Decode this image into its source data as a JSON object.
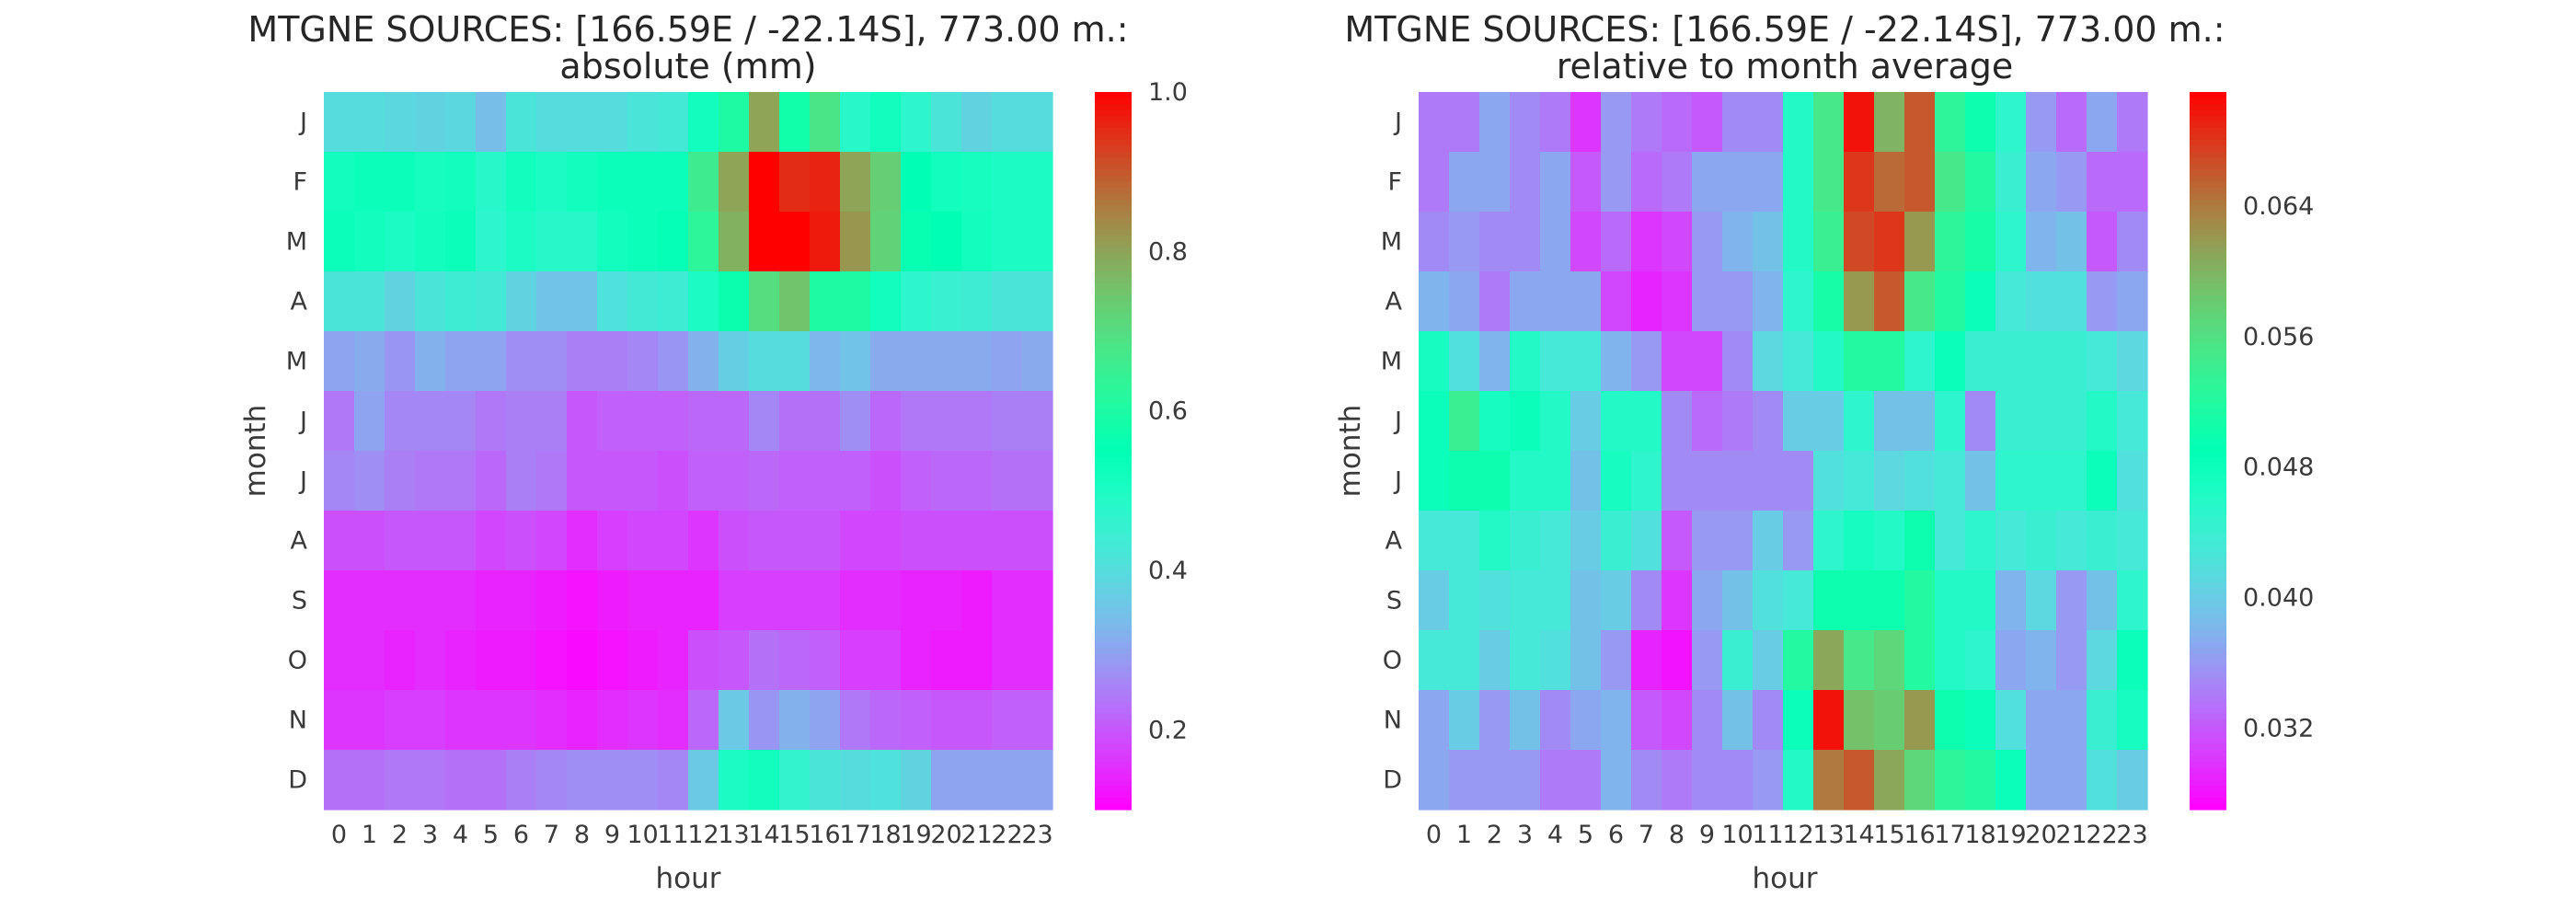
{
  "chart_data": [
    {
      "type": "heatmap",
      "title_line1": "MTGNE SOURCES: [166.59E / -22.14S], 773.00 m.:",
      "title_line2": "absolute (mm)",
      "xlabel": "hour",
      "ylabel": "month",
      "x": [
        "0",
        "1",
        "2",
        "3",
        "4",
        "5",
        "6",
        "7",
        "8",
        "9",
        "10",
        "11",
        "12",
        "13",
        "14",
        "15",
        "16",
        "17",
        "18",
        "19",
        "20",
        "21",
        "22",
        "23"
      ],
      "y": [
        "J",
        "F",
        "M",
        "A",
        "M",
        "J",
        "J",
        "A",
        "S",
        "O",
        "N",
        "D"
      ],
      "colormap": "rainbow",
      "vmin": 0.1,
      "vmax": 1.0,
      "colorbar_ticks": [
        "0.2",
        "0.4",
        "0.6",
        "0.8",
        "1.0"
      ],
      "colorbar_tick_values": [
        0.2,
        0.4,
        0.6,
        0.8,
        1.0
      ],
      "values": [
        [
          0.4,
          0.4,
          0.39,
          0.38,
          0.39,
          0.34,
          0.42,
          0.4,
          0.4,
          0.4,
          0.42,
          0.43,
          0.52,
          0.6,
          0.8,
          0.58,
          0.68,
          0.48,
          0.52,
          0.47,
          0.42,
          0.38,
          0.4,
          0.4
        ],
        [
          0.52,
          0.53,
          0.53,
          0.51,
          0.52,
          0.48,
          0.52,
          0.5,
          0.52,
          0.53,
          0.53,
          0.53,
          0.66,
          0.8,
          1.0,
          0.95,
          0.96,
          0.8,
          0.73,
          0.55,
          0.52,
          0.51,
          0.5,
          0.5
        ],
        [
          0.53,
          0.52,
          0.5,
          0.52,
          0.53,
          0.47,
          0.5,
          0.48,
          0.48,
          0.52,
          0.53,
          0.54,
          0.63,
          0.78,
          1.0,
          1.0,
          0.97,
          0.82,
          0.72,
          0.56,
          0.55,
          0.52,
          0.5,
          0.5
        ],
        [
          0.42,
          0.42,
          0.38,
          0.42,
          0.44,
          0.43,
          0.38,
          0.35,
          0.35,
          0.41,
          0.43,
          0.44,
          0.5,
          0.57,
          0.7,
          0.75,
          0.6,
          0.6,
          0.52,
          0.47,
          0.45,
          0.44,
          0.42,
          0.42
        ],
        [
          0.3,
          0.31,
          0.28,
          0.32,
          0.3,
          0.3,
          0.27,
          0.27,
          0.25,
          0.25,
          0.26,
          0.28,
          0.32,
          0.37,
          0.4,
          0.4,
          0.33,
          0.35,
          0.31,
          0.31,
          0.31,
          0.31,
          0.3,
          0.31
        ],
        [
          0.24,
          0.3,
          0.26,
          0.26,
          0.26,
          0.24,
          0.25,
          0.25,
          0.2,
          0.21,
          0.21,
          0.21,
          0.22,
          0.22,
          0.26,
          0.23,
          0.23,
          0.27,
          0.22,
          0.24,
          0.24,
          0.24,
          0.25,
          0.25
        ],
        [
          0.26,
          0.27,
          0.25,
          0.24,
          0.24,
          0.22,
          0.25,
          0.24,
          0.2,
          0.2,
          0.2,
          0.19,
          0.21,
          0.21,
          0.22,
          0.21,
          0.21,
          0.21,
          0.19,
          0.21,
          0.22,
          0.22,
          0.23,
          0.23
        ],
        [
          0.19,
          0.19,
          0.2,
          0.2,
          0.2,
          0.18,
          0.19,
          0.18,
          0.15,
          0.17,
          0.18,
          0.18,
          0.16,
          0.19,
          0.2,
          0.2,
          0.2,
          0.18,
          0.18,
          0.19,
          0.19,
          0.19,
          0.19,
          0.19
        ],
        [
          0.15,
          0.15,
          0.15,
          0.15,
          0.15,
          0.14,
          0.14,
          0.13,
          0.12,
          0.13,
          0.14,
          0.14,
          0.14,
          0.17,
          0.17,
          0.17,
          0.17,
          0.15,
          0.15,
          0.14,
          0.14,
          0.13,
          0.15,
          0.15
        ],
        [
          0.15,
          0.15,
          0.14,
          0.15,
          0.14,
          0.13,
          0.13,
          0.12,
          0.11,
          0.12,
          0.13,
          0.14,
          0.19,
          0.2,
          0.23,
          0.22,
          0.21,
          0.17,
          0.17,
          0.14,
          0.13,
          0.13,
          0.15,
          0.15
        ],
        [
          0.16,
          0.16,
          0.17,
          0.17,
          0.16,
          0.16,
          0.16,
          0.15,
          0.14,
          0.15,
          0.16,
          0.15,
          0.22,
          0.36,
          0.28,
          0.32,
          0.3,
          0.24,
          0.22,
          0.21,
          0.2,
          0.2,
          0.21,
          0.21
        ],
        [
          0.23,
          0.23,
          0.24,
          0.24,
          0.23,
          0.23,
          0.25,
          0.26,
          0.27,
          0.27,
          0.27,
          0.26,
          0.36,
          0.5,
          0.52,
          0.46,
          0.42,
          0.4,
          0.41,
          0.38,
          0.3,
          0.3,
          0.3,
          0.3
        ]
      ]
    },
    {
      "type": "heatmap",
      "title_line1": "MTGNE SOURCES: [166.59E / -22.14S], 773.00 m.:",
      "title_line2": "relative to month average",
      "xlabel": "hour",
      "ylabel": "month",
      "x": [
        "0",
        "1",
        "2",
        "3",
        "4",
        "5",
        "6",
        "7",
        "8",
        "9",
        "10",
        "11",
        "12",
        "13",
        "14",
        "15",
        "16",
        "17",
        "18",
        "19",
        "20",
        "21",
        "22",
        "23"
      ],
      "y": [
        "J",
        "F",
        "M",
        "A",
        "M",
        "J",
        "J",
        "A",
        "S",
        "O",
        "N",
        "D"
      ],
      "colormap": "rainbow",
      "vmin": 0.027,
      "vmax": 0.071,
      "colorbar_ticks": [
        "0.032",
        "0.040",
        "0.048",
        "0.056",
        "0.064"
      ],
      "colorbar_tick_values": [
        0.032,
        0.04,
        0.048,
        0.056,
        0.064
      ],
      "values": [
        [
          0.034,
          0.034,
          0.037,
          0.035,
          0.034,
          0.03,
          0.036,
          0.034,
          0.033,
          0.032,
          0.035,
          0.035,
          0.046,
          0.055,
          0.07,
          0.06,
          0.066,
          0.053,
          0.05,
          0.045,
          0.036,
          0.033,
          0.037,
          0.034
        ],
        [
          0.034,
          0.037,
          0.037,
          0.035,
          0.037,
          0.032,
          0.036,
          0.033,
          0.034,
          0.037,
          0.037,
          0.037,
          0.046,
          0.055,
          0.068,
          0.065,
          0.066,
          0.055,
          0.052,
          0.044,
          0.037,
          0.036,
          0.033,
          0.033
        ],
        [
          0.035,
          0.036,
          0.035,
          0.035,
          0.037,
          0.031,
          0.033,
          0.03,
          0.031,
          0.036,
          0.038,
          0.039,
          0.046,
          0.054,
          0.067,
          0.068,
          0.062,
          0.053,
          0.051,
          0.045,
          0.038,
          0.039,
          0.032,
          0.035
        ],
        [
          0.038,
          0.037,
          0.034,
          0.037,
          0.037,
          0.037,
          0.031,
          0.029,
          0.03,
          0.036,
          0.036,
          0.038,
          0.045,
          0.051,
          0.062,
          0.066,
          0.055,
          0.052,
          0.048,
          0.043,
          0.042,
          0.042,
          0.036,
          0.037
        ],
        [
          0.047,
          0.042,
          0.038,
          0.046,
          0.043,
          0.043,
          0.038,
          0.036,
          0.031,
          0.031,
          0.035,
          0.041,
          0.043,
          0.046,
          0.052,
          0.052,
          0.045,
          0.048,
          0.044,
          0.044,
          0.044,
          0.044,
          0.043,
          0.041
        ],
        [
          0.048,
          0.054,
          0.047,
          0.048,
          0.046,
          0.04,
          0.046,
          0.046,
          0.035,
          0.033,
          0.034,
          0.035,
          0.04,
          0.04,
          0.045,
          0.039,
          0.039,
          0.045,
          0.035,
          0.044,
          0.044,
          0.044,
          0.046,
          0.043
        ],
        [
          0.048,
          0.05,
          0.05,
          0.046,
          0.046,
          0.039,
          0.047,
          0.045,
          0.035,
          0.035,
          0.035,
          0.035,
          0.035,
          0.042,
          0.043,
          0.041,
          0.042,
          0.043,
          0.039,
          0.045,
          0.045,
          0.045,
          0.048,
          0.042
        ],
        [
          0.043,
          0.043,
          0.046,
          0.044,
          0.043,
          0.04,
          0.044,
          0.042,
          0.032,
          0.036,
          0.036,
          0.04,
          0.036,
          0.045,
          0.047,
          0.046,
          0.05,
          0.043,
          0.045,
          0.043,
          0.044,
          0.043,
          0.044,
          0.043
        ],
        [
          0.04,
          0.043,
          0.042,
          0.043,
          0.043,
          0.039,
          0.04,
          0.035,
          0.03,
          0.037,
          0.039,
          0.042,
          0.043,
          0.05,
          0.05,
          0.05,
          0.052,
          0.046,
          0.046,
          0.038,
          0.041,
          0.036,
          0.039,
          0.045
        ],
        [
          0.043,
          0.043,
          0.04,
          0.043,
          0.042,
          0.039,
          0.036,
          0.029,
          0.028,
          0.036,
          0.044,
          0.04,
          0.052,
          0.061,
          0.055,
          0.057,
          0.052,
          0.046,
          0.045,
          0.037,
          0.038,
          0.036,
          0.041,
          0.048
        ],
        [
          0.037,
          0.04,
          0.036,
          0.039,
          0.035,
          0.037,
          0.038,
          0.032,
          0.031,
          0.035,
          0.039,
          0.035,
          0.048,
          0.07,
          0.059,
          0.058,
          0.062,
          0.05,
          0.048,
          0.042,
          0.037,
          0.037,
          0.044,
          0.047
        ],
        [
          0.037,
          0.036,
          0.036,
          0.036,
          0.034,
          0.034,
          0.038,
          0.035,
          0.034,
          0.035,
          0.035,
          0.036,
          0.046,
          0.064,
          0.066,
          0.061,
          0.057,
          0.053,
          0.052,
          0.048,
          0.037,
          0.037,
          0.042,
          0.04
        ]
      ]
    }
  ]
}
